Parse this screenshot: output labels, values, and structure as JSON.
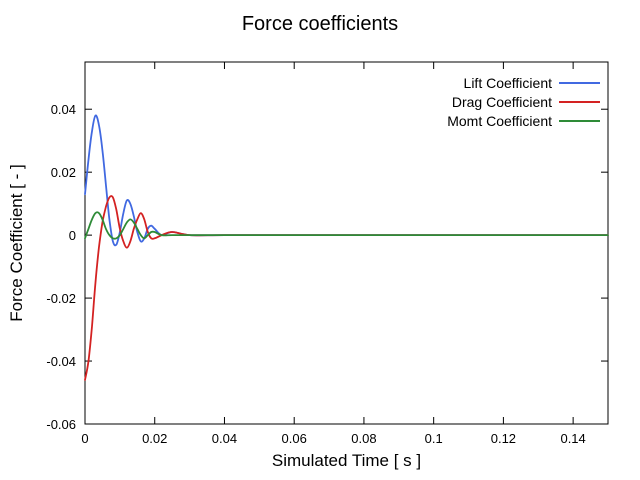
{
  "title": "Force coefficients",
  "chart_data": {
    "type": "line",
    "title": "Force coefficients",
    "xlabel": "Simulated Time [ s ]",
    "ylabel": "Force Coefficient [ - ]",
    "xlim": [
      0,
      0.15
    ],
    "ylim": [
      -0.06,
      0.055
    ],
    "grid": false,
    "legend_position": "top-right-inside",
    "background_color": "#ffffff",
    "border_color": "#000000",
    "xticks": {
      "values": [
        0,
        0.02,
        0.04,
        0.06,
        0.08,
        0.1,
        0.12,
        0.14
      ],
      "labels": [
        "0",
        "0.02",
        "0.04",
        "0.06",
        "0.08",
        "0.1",
        "0.12",
        "0.14"
      ]
    },
    "yticks": {
      "values": [
        -0.06,
        -0.04,
        -0.02,
        0,
        0.02,
        0.04
      ],
      "labels": [
        "-0.06",
        "-0.04",
        "-0.02",
        "0",
        "0.02",
        "0.04"
      ]
    },
    "x": [
      0,
      0.001,
      0.002,
      0.003,
      0.004,
      0.005,
      0.006,
      0.007,
      0.008,
      0.009,
      0.01,
      0.011,
      0.012,
      0.013,
      0.014,
      0.015,
      0.016,
      0.017,
      0.018,
      0.019,
      0.02,
      0.022,
      0.025,
      0.03,
      0.04,
      0.06,
      0.08,
      0.1,
      0.12,
      0.15
    ],
    "series": [
      {
        "name": "Lift Coefficient",
        "color": "#4169e1",
        "values": [
          0.013,
          0.024,
          0.033,
          0.038,
          0.035,
          0.027,
          0.016,
          0.005,
          -0.002,
          -0.003,
          0.001,
          0.007,
          0.011,
          0.01,
          0.006,
          0.001,
          -0.002,
          -0.001,
          0.002,
          0.003,
          0.002,
          0.0,
          0.001,
          0.0,
          0,
          0,
          0,
          0,
          0,
          0
        ]
      },
      {
        "name": "Drag Coefficient",
        "color": "#d42222",
        "values": [
          -0.046,
          -0.04,
          -0.029,
          -0.015,
          -0.004,
          0.004,
          0.009,
          0.012,
          0.012,
          0.008,
          0.002,
          -0.002,
          -0.004,
          -0.002,
          0.002,
          0.005,
          0.007,
          0.005,
          0.001,
          -0.001,
          -0.001,
          0.0,
          0.001,
          0.0,
          0,
          0,
          0,
          0,
          0,
          0
        ]
      },
      {
        "name": "Momt Coefficient",
        "color": "#2e8b37",
        "values": [
          -0.001,
          0.002,
          0.005,
          0.007,
          0.007,
          0.005,
          0.002,
          0.0,
          -0.001,
          -0.001,
          0.0,
          0.002,
          0.004,
          0.005,
          0.004,
          0.002,
          0.0,
          -0.001,
          0.0,
          0.001,
          0.001,
          0.0,
          0,
          0,
          0,
          0,
          0,
          0,
          0,
          0
        ]
      }
    ]
  }
}
